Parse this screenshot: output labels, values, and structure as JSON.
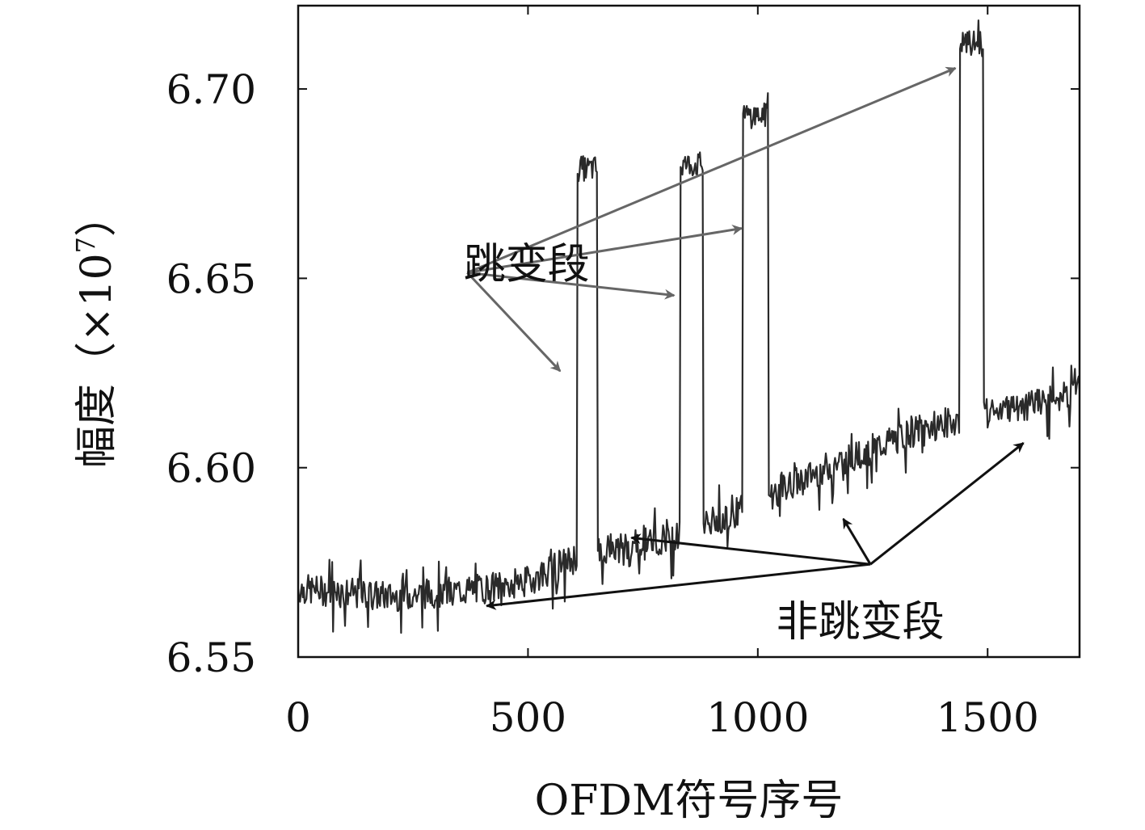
{
  "chart_data": {
    "type": "line",
    "title": "",
    "xlabel": "OFDM符号序号",
    "ylabel": "幅度（×10",
    "ylabel_exponent": "7",
    "ylabel_close": "）",
    "xlim": [
      0,
      1700
    ],
    "ylim": [
      6.55,
      6.722
    ],
    "xticks": [
      0,
      500,
      1000,
      1500
    ],
    "xtick_labels": [
      "0",
      "500",
      "1000",
      "1500"
    ],
    "yticks": [
      6.55,
      6.6,
      6.65,
      6.7
    ],
    "ytick_labels": [
      "6.55",
      "6.60",
      "6.65",
      "6.70"
    ],
    "grid": false,
    "series": [
      {
        "color": "#2a2a2a",
        "baseline_points": [
          [
            0,
            6.568
          ],
          [
            100,
            6.567
          ],
          [
            200,
            6.566
          ],
          [
            300,
            6.567
          ],
          [
            400,
            6.568
          ],
          [
            500,
            6.57
          ],
          [
            580,
            6.575
          ],
          [
            650,
            6.578
          ],
          [
            750,
            6.58
          ],
          [
            850,
            6.583
          ],
          [
            950,
            6.588
          ],
          [
            1050,
            6.594
          ],
          [
            1150,
            6.6
          ],
          [
            1250,
            6.605
          ],
          [
            1350,
            6.61
          ],
          [
            1450,
            6.613
          ],
          [
            1550,
            6.615
          ],
          [
            1650,
            6.619
          ],
          [
            1700,
            6.62
          ]
        ],
        "noise_amplitude": 0.004,
        "hop_segments": [
          {
            "x_start": 607,
            "x_end": 650,
            "level": 6.679
          },
          {
            "x_start": 832,
            "x_end": 880,
            "level": 6.68
          },
          {
            "x_start": 968,
            "x_end": 1022,
            "level": 6.693
          },
          {
            "x_start": 1440,
            "x_end": 1490,
            "level": 6.712
          }
        ]
      }
    ],
    "annotations": [
      {
        "text": "跳变段",
        "text_position": [
          360,
          6.65
        ],
        "origin": [
          368,
          6.6515
        ],
        "color": "#666666",
        "arrow_targets": [
          [
            570,
            6.6255
          ],
          [
            818,
            6.6455
          ],
          [
            965,
            6.6632
          ],
          [
            1430,
            6.7055
          ]
        ]
      },
      {
        "text": "非跳变段",
        "text_position": [
          1040,
          6.5555
        ],
        "origin": [
          1245,
          6.5745
        ],
        "color": "#111111",
        "arrow_targets": [
          [
            410,
            6.5635
          ],
          [
            725,
            6.5815
          ],
          [
            1186,
            6.5865
          ],
          [
            1578,
            6.6065
          ]
        ]
      }
    ]
  }
}
